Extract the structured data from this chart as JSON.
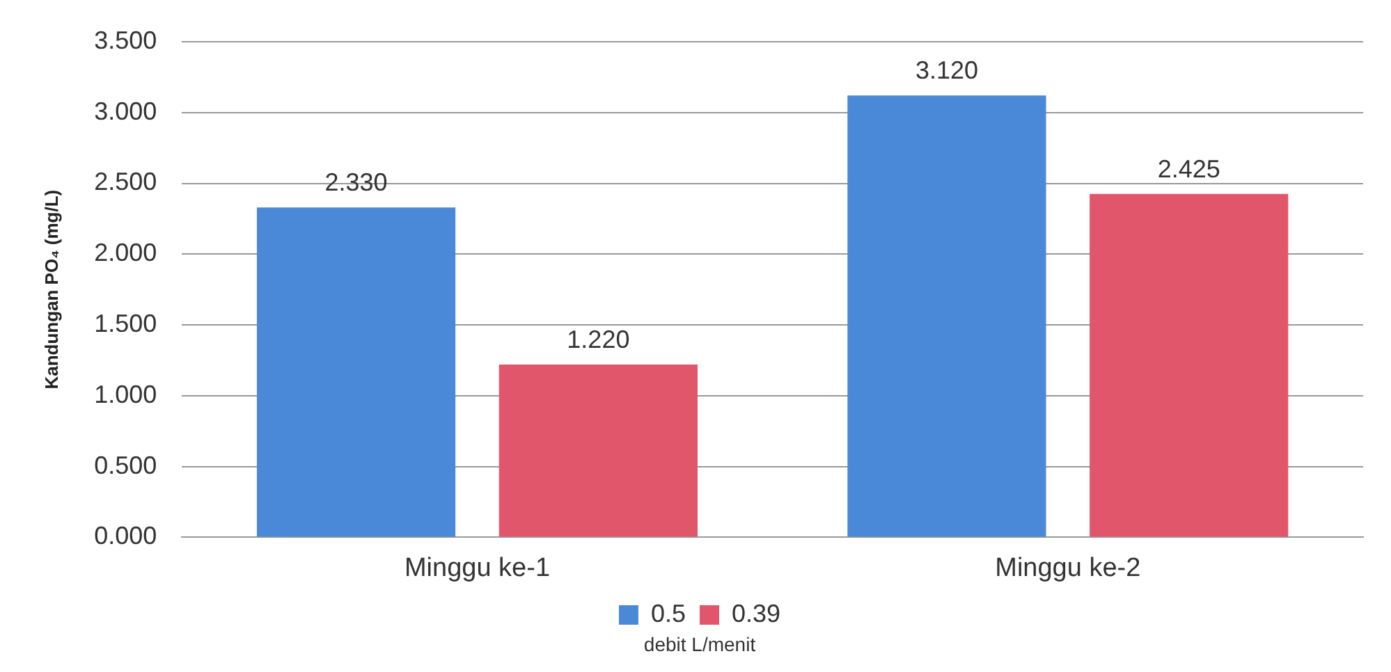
{
  "chart_data": {
    "type": "bar",
    "ylabel": "Kandungan PO₄ (mg/L)",
    "legend_title": "debit L/menit",
    "categories": [
      "Minggu ke-1",
      "Minggu ke-2"
    ],
    "series": [
      {
        "name": "0.5",
        "color": "#4a88d8",
        "values": [
          2.33,
          3.12
        ],
        "value_labels": [
          "2.330",
          "3.120"
        ]
      },
      {
        "name": "0.39",
        "color": "#e2566c",
        "values": [
          1.22,
          2.425
        ],
        "value_labels": [
          "1.220",
          "2.425"
        ]
      }
    ],
    "ylim": [
      0,
      3.5
    ],
    "yticks": [
      {
        "value": 0,
        "label": "0.000"
      },
      {
        "value": 0.5,
        "label": "0.500"
      },
      {
        "value": 1,
        "label": "1.000"
      },
      {
        "value": 1.5,
        "label": "1.500"
      },
      {
        "value": 2,
        "label": "2.000"
      },
      {
        "value": 2.5,
        "label": "2.500"
      },
      {
        "value": 3,
        "label": "3.000"
      },
      {
        "value": 3.5,
        "label": "3.500"
      }
    ],
    "grid": "y",
    "legend": "bottom"
  }
}
